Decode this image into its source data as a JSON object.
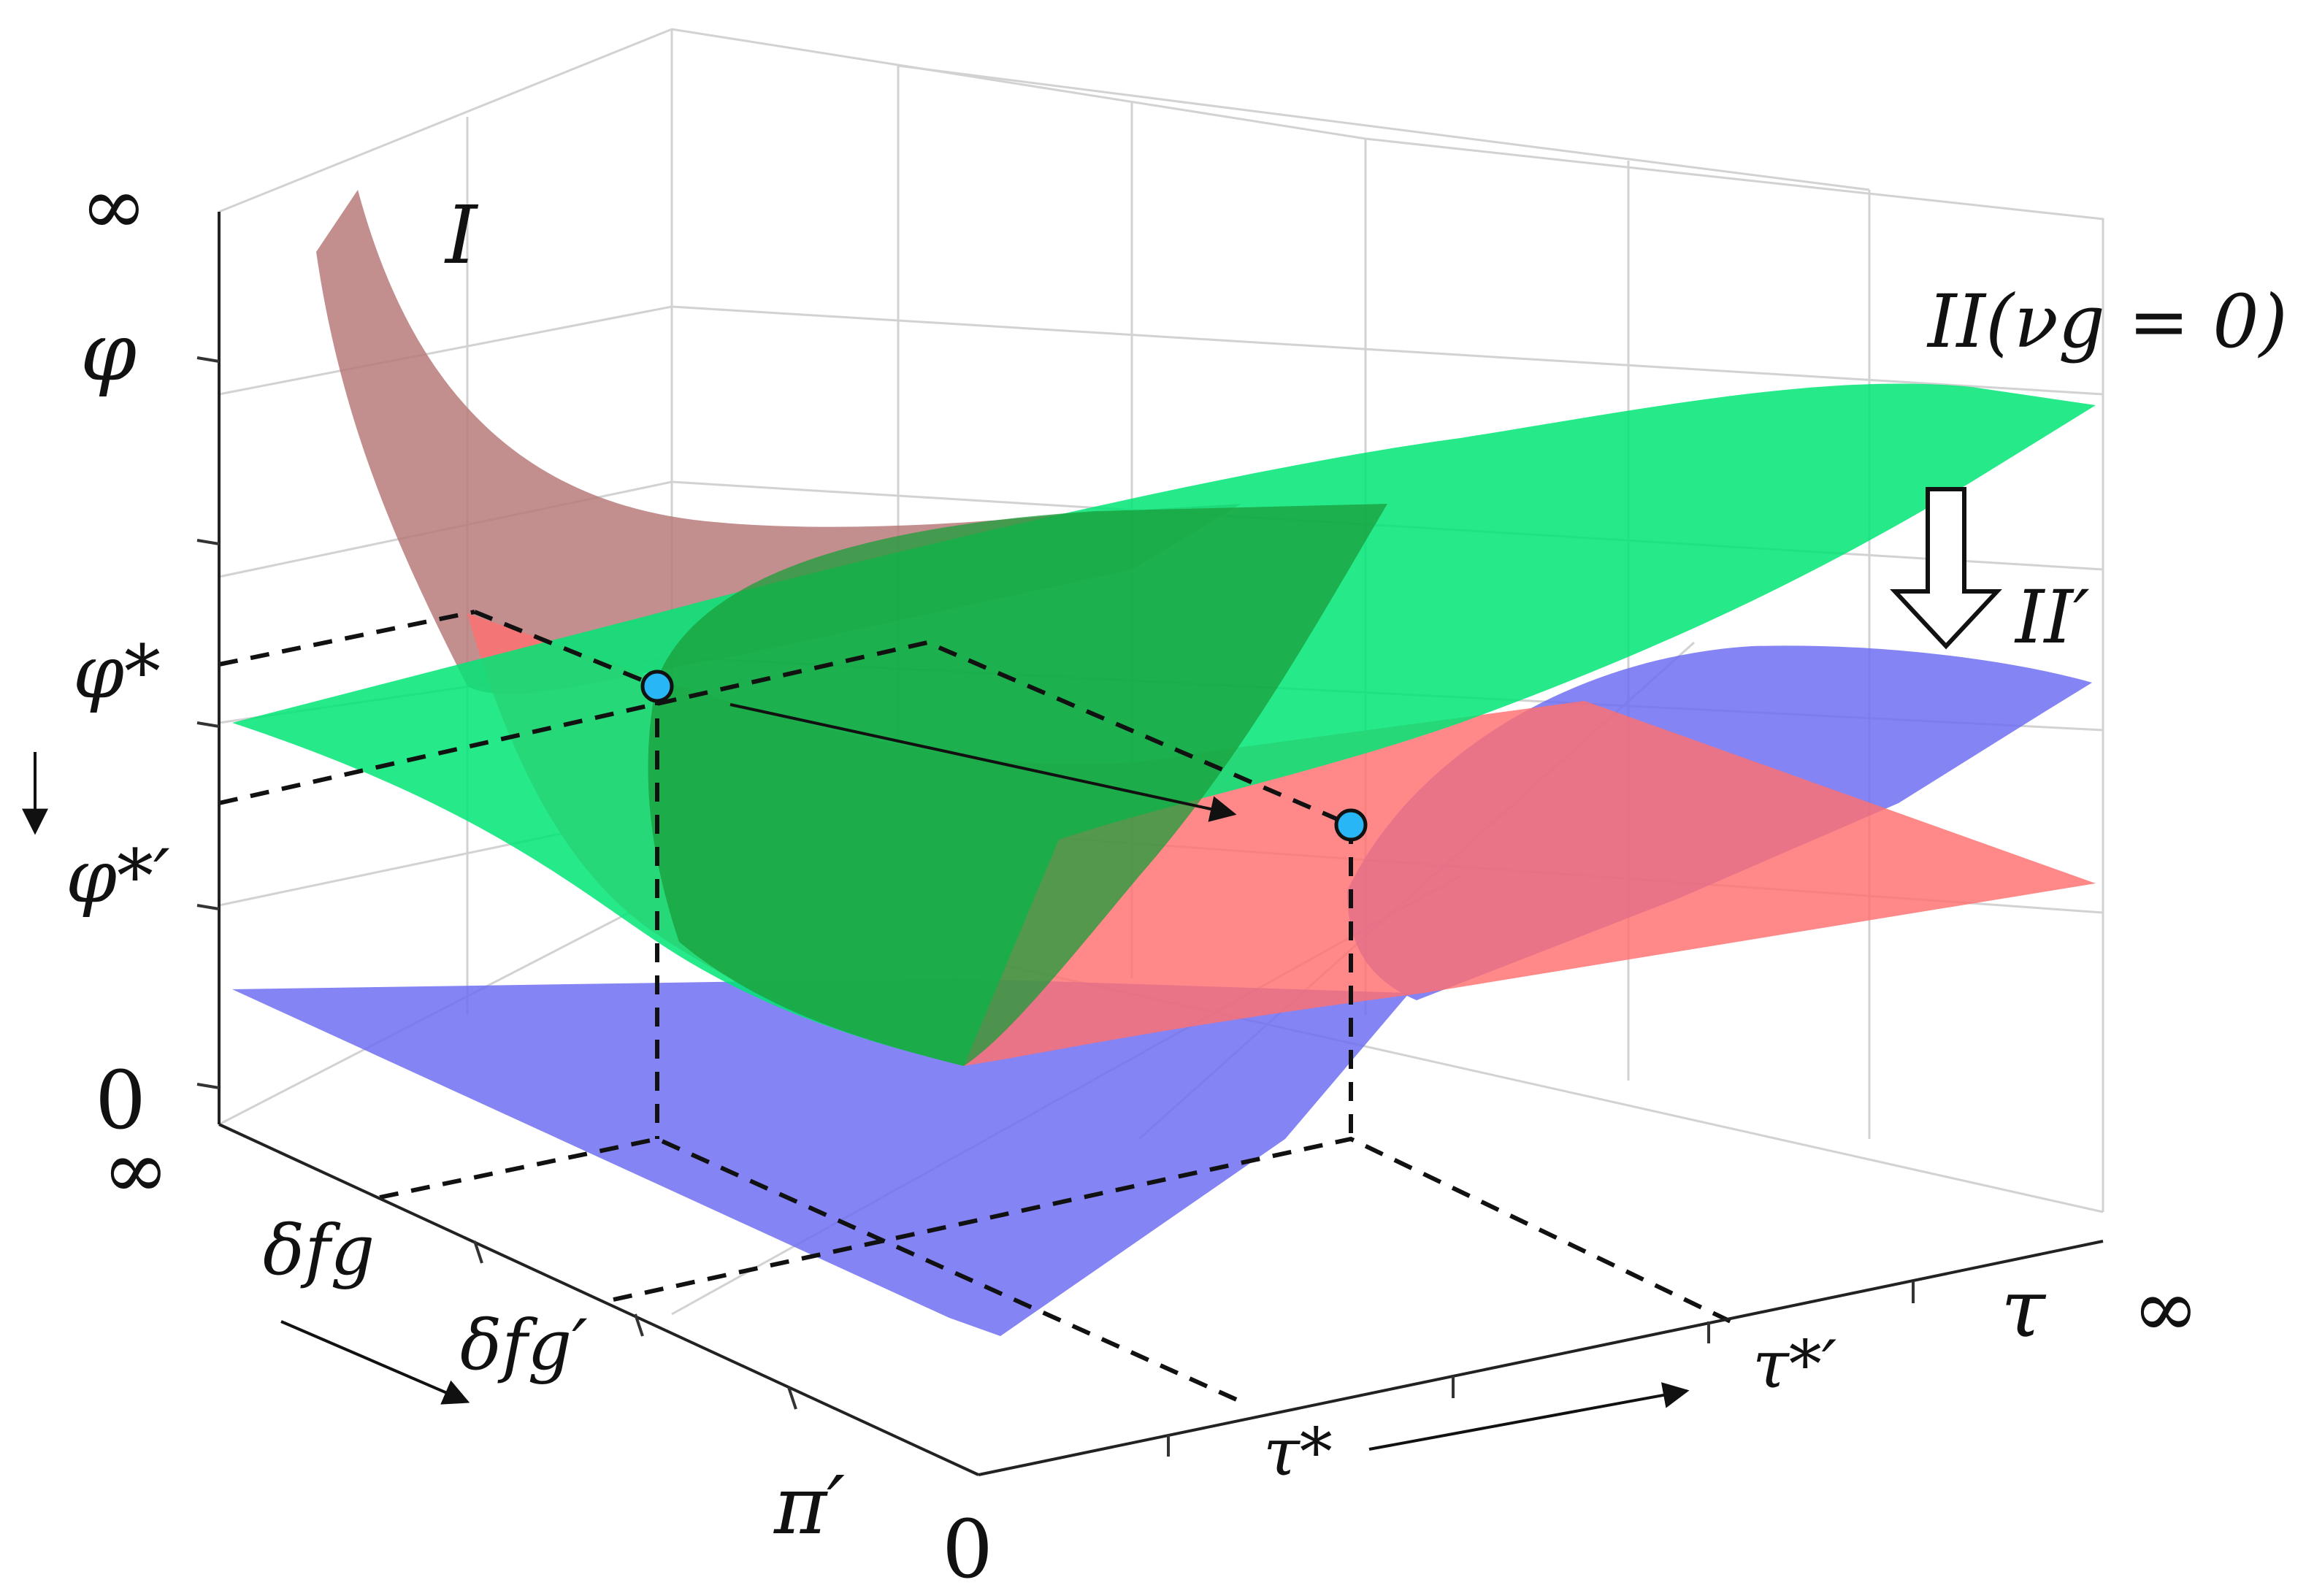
{
  "colors": {
    "surface_I": "#ff6f6f",
    "surface_I_back": "#b87a7a",
    "surface_II": "#00e676",
    "surface_II_prime": "#6f6ff2",
    "point_fill": "#29b6f6",
    "dash_color": "#111111",
    "grid_color": "#d2d2d2"
  },
  "labels": {
    "surface_I": "I",
    "surface_II": "II(νg = 0)",
    "surface_II_prime": "II′"
  },
  "axes": {
    "vertical": {
      "top": "∞",
      "phi": "φ",
      "phi_star": "φ*",
      "phi_star_prime": "φ*′",
      "zero": "0"
    },
    "depth": {
      "inf": "∞",
      "delta_fg": "δfg",
      "delta_fg_prime": "δfg′",
      "pi_prime": "π′",
      "zero": "0"
    },
    "horizontal": {
      "tau_star": "τ*",
      "tau_star_prime": "τ*′",
      "tau": "τ",
      "inf": "∞"
    }
  },
  "icons": {
    "shift_arrow": "hollow-down-arrow-icon",
    "phi_shift": "down-arrow-icon",
    "delta_shift": "diagonal-arrow-icon",
    "tau_shift": "right-arrow-icon"
  }
}
